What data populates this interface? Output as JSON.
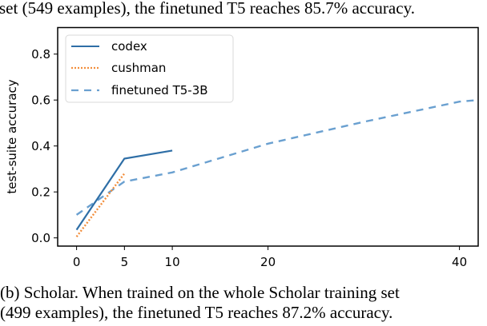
{
  "captions": {
    "top": "set (549 examples), the finetuned T5 reaches 85.7% accuracy.",
    "bottom_line1": "(b) Scholar. When trained on the whole Scholar training set",
    "bottom_line2": "(499 examples), the finetuned T5 reaches 87.2% accuracy."
  },
  "colors": {
    "codex": "#2e6ea6",
    "cushman": "#f28e3c",
    "finetuned_t5": "#6aa0d0"
  },
  "chart_data": {
    "type": "line",
    "title": "",
    "xlabel": "",
    "ylabel": "test-suite accuracy",
    "xlim": [
      -2,
      42
    ],
    "ylim": [
      -0.035,
      0.92
    ],
    "xticks": [
      "0",
      "5",
      "10",
      "20",
      "40"
    ],
    "yticks": [
      "0.0",
      "0.2",
      "0.4",
      "0.6",
      "0.8"
    ],
    "grid": false,
    "legend_position": "upper left",
    "series": [
      {
        "name": "codex",
        "style": "solid",
        "x": [
          0,
          5,
          10
        ],
        "values": [
          0.035,
          0.345,
          0.38
        ]
      },
      {
        "name": "cushman",
        "style": "dotted",
        "x": [
          0,
          5
        ],
        "values": [
          0.005,
          0.28
        ]
      },
      {
        "name": "finetuned T5-3B",
        "style": "dashed",
        "x": [
          0,
          5,
          10,
          20,
          30,
          40,
          42
        ],
        "values": [
          0.1,
          0.245,
          0.285,
          0.41,
          0.505,
          0.593,
          0.6
        ]
      }
    ]
  },
  "legend": {
    "items": [
      "codex",
      "cushman",
      "finetuned T5-3B"
    ]
  }
}
